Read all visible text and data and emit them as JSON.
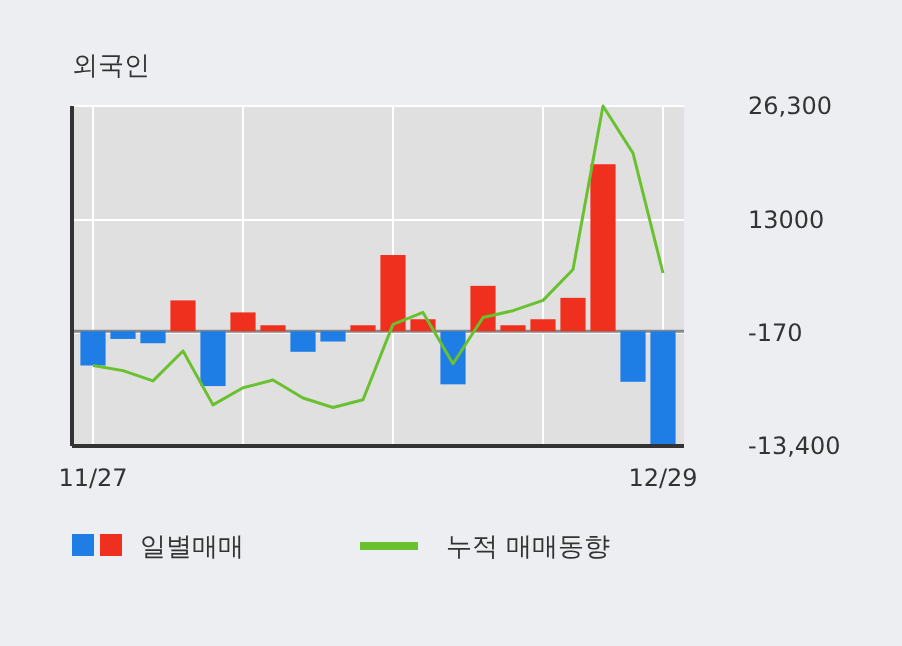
{
  "chart_data": {
    "type": "bar",
    "title": "외국인",
    "categories": [
      "11/27",
      null,
      null,
      null,
      null,
      null,
      null,
      null,
      null,
      null,
      null,
      null,
      null,
      null,
      null,
      null,
      null,
      null,
      null,
      "12/29"
    ],
    "series": [
      {
        "name": "일별매매",
        "colors": [
          "#1f7de6",
          "#1f7de6",
          "#1f7de6",
          "#f0301e",
          "#1f7de6",
          "#f0301e",
          "#f0301e",
          "#1f7de6",
          "#1f7de6",
          "#f0301e",
          "#f0301e",
          "#f0301e",
          "#1f7de6",
          "#f0301e",
          "#f0301e",
          "#f0301e",
          "#f0301e",
          "#f0301e",
          "#1f7de6",
          "#1f7de6"
        ],
        "values": [
          -4000,
          -900,
          -1400,
          3600,
          -6400,
          2200,
          700,
          -2400,
          -1200,
          700,
          8900,
          1400,
          -6200,
          5300,
          700,
          1400,
          3900,
          19500,
          -5900,
          -13200
        ]
      },
      {
        "name": "누적 매매동향",
        "type": "line",
        "color": "#6ac12f",
        "values": [
          -4000,
          -4600,
          -5800,
          -2300,
          -8600,
          -6600,
          -5700,
          -7800,
          -8900,
          -8000,
          800,
          2200,
          -3800,
          1600,
          2400,
          3600,
          7200,
          26300,
          20800,
          6800
        ]
      }
    ],
    "ylim": [
      -13400,
      26300
    ],
    "yticks": [
      {
        "value": 26300,
        "label": "26,300"
      },
      {
        "value": 13000,
        "label": "13000"
      },
      {
        "value": -170,
        "label": "-170"
      },
      {
        "value": -13400,
        "label": "-13,400"
      }
    ],
    "grid": true,
    "legend": "bottom"
  }
}
